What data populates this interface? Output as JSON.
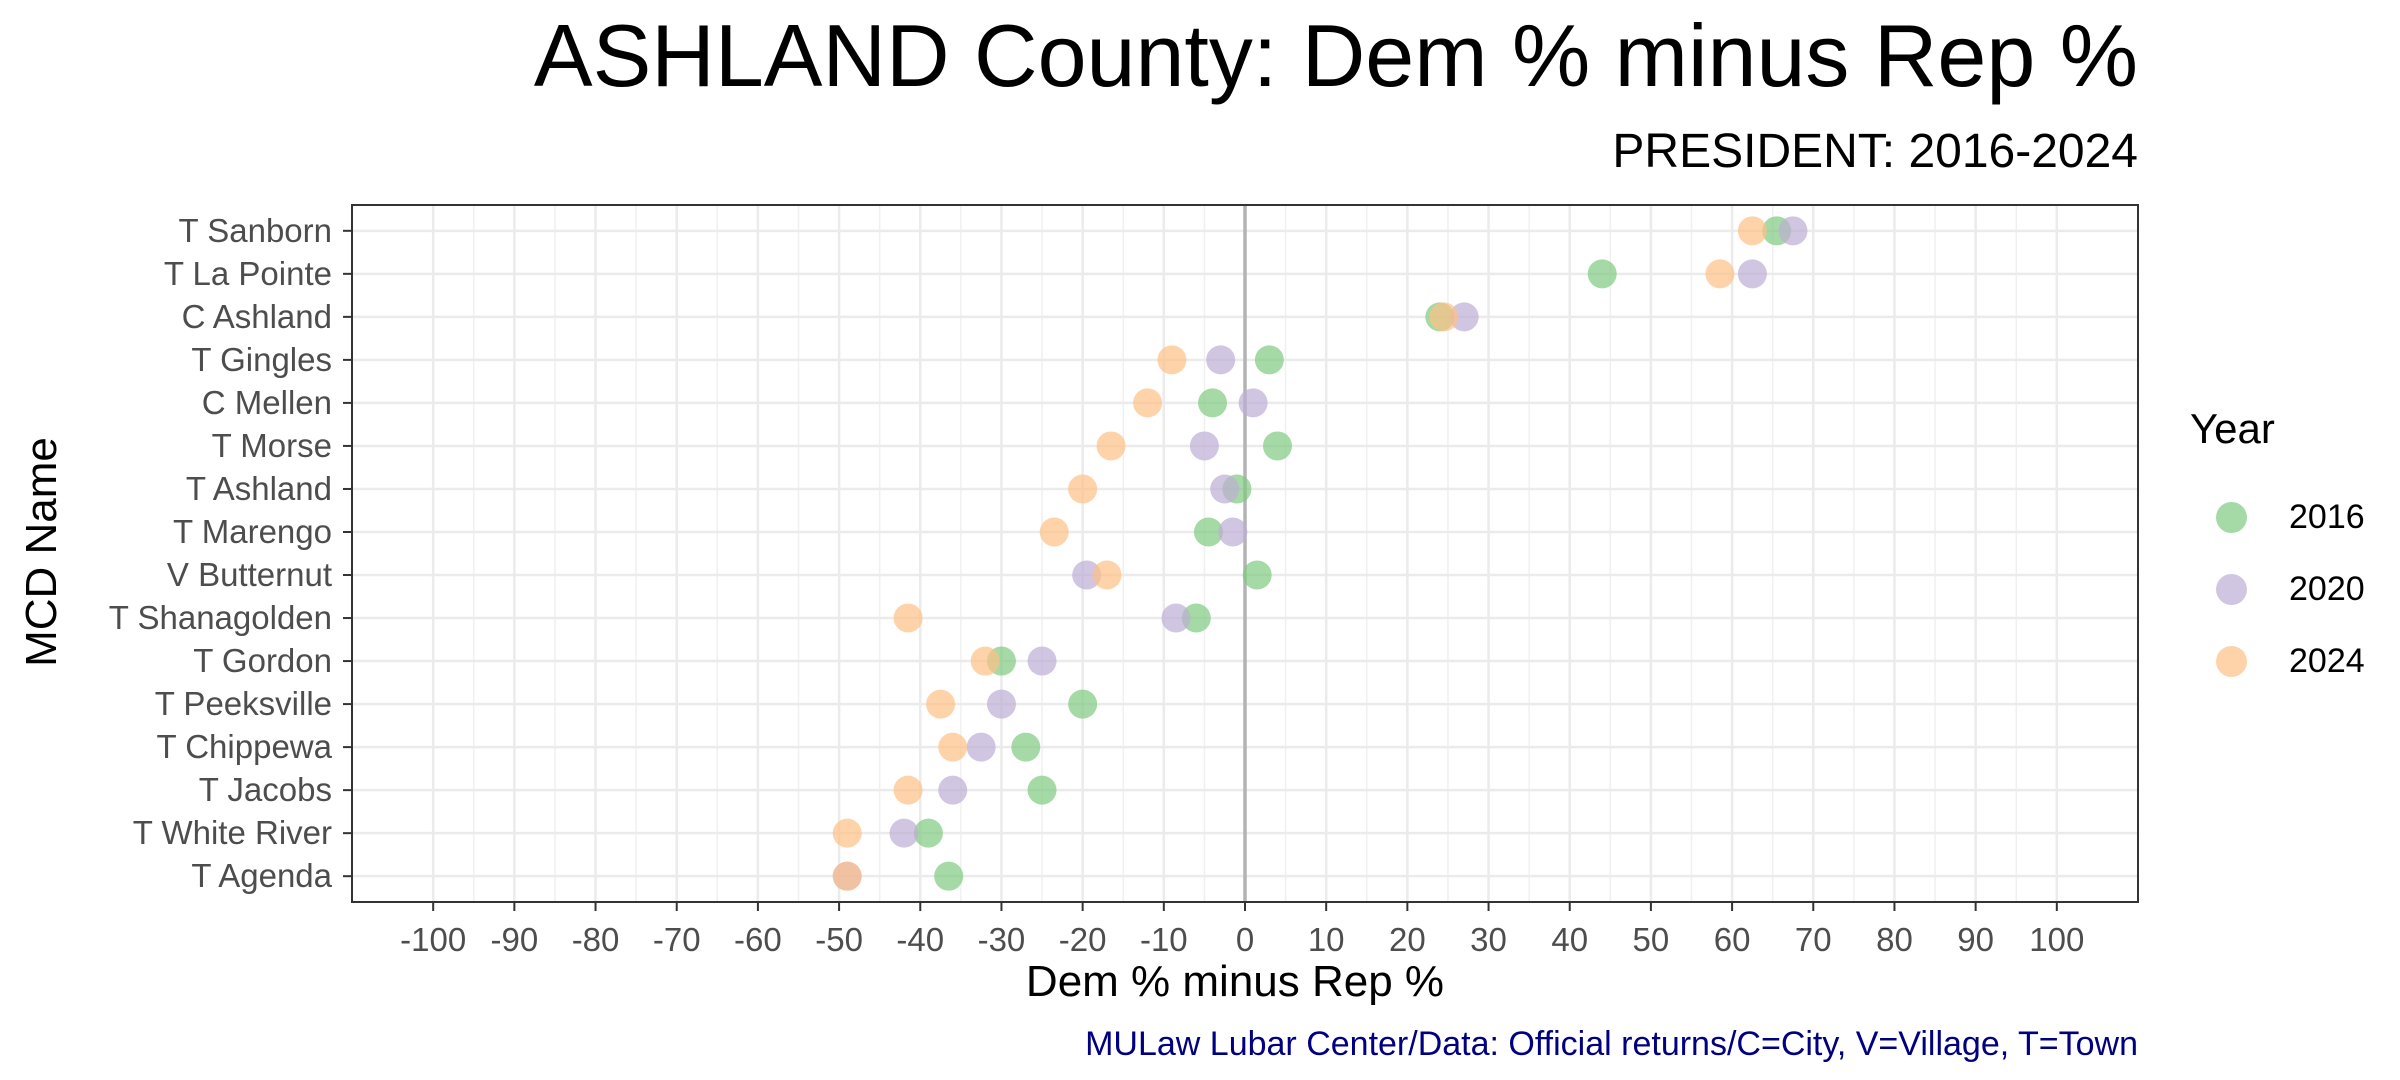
{
  "chart_data": {
    "type": "scatter",
    "title": "ASHLAND County: Dem % minus Rep %",
    "subtitle": "PRESIDENT: 2016-2024",
    "xlabel": "Dem % minus Rep %",
    "ylabel": "MCD Name",
    "caption": "MULaw Lubar Center/Data: Official returns/C=City, V=Village, T=Town",
    "xlim": [
      -110,
      110
    ],
    "xticks": [
      -100,
      -90,
      -80,
      -70,
      -60,
      -50,
      -40,
      -30,
      -20,
      -10,
      0,
      10,
      20,
      30,
      40,
      50,
      60,
      70,
      80,
      90,
      100
    ],
    "grid": true,
    "legend_position": "right",
    "legend_title": "Year",
    "categories": [
      "T Sanborn",
      "T La Pointe",
      "C Ashland",
      "T Gingles",
      "C Mellen",
      "T Morse",
      "T Ashland",
      "T Marengo",
      "V Butternut",
      "T Shanagolden",
      "T Gordon",
      "T Peeksville",
      "T Chippewa",
      "T Jacobs",
      "T White River",
      "T Agenda"
    ],
    "series": [
      {
        "name": "2016",
        "color": "#7fc97f",
        "values": [
          65.5,
          44,
          24,
          3,
          -4,
          4,
          -1,
          -4.5,
          1.5,
          -6,
          -30,
          -20,
          -27,
          -25,
          -39,
          -36.5
        ]
      },
      {
        "name": "2020",
        "color": "#beaed4",
        "values": [
          67.5,
          62.5,
          27,
          -3,
          1,
          -5,
          -2.5,
          -1.5,
          -19.5,
          -8.5,
          -25,
          -30,
          -32.5,
          -36,
          -42,
          -49
        ]
      },
      {
        "name": "2024",
        "color": "#fdc086",
        "values": [
          62.5,
          58.5,
          24.5,
          -9,
          -12,
          -16.5,
          -20,
          -23.5,
          -17,
          -41.5,
          -32,
          -37.5,
          -36,
          -41.5,
          -49,
          -49
        ]
      }
    ]
  }
}
